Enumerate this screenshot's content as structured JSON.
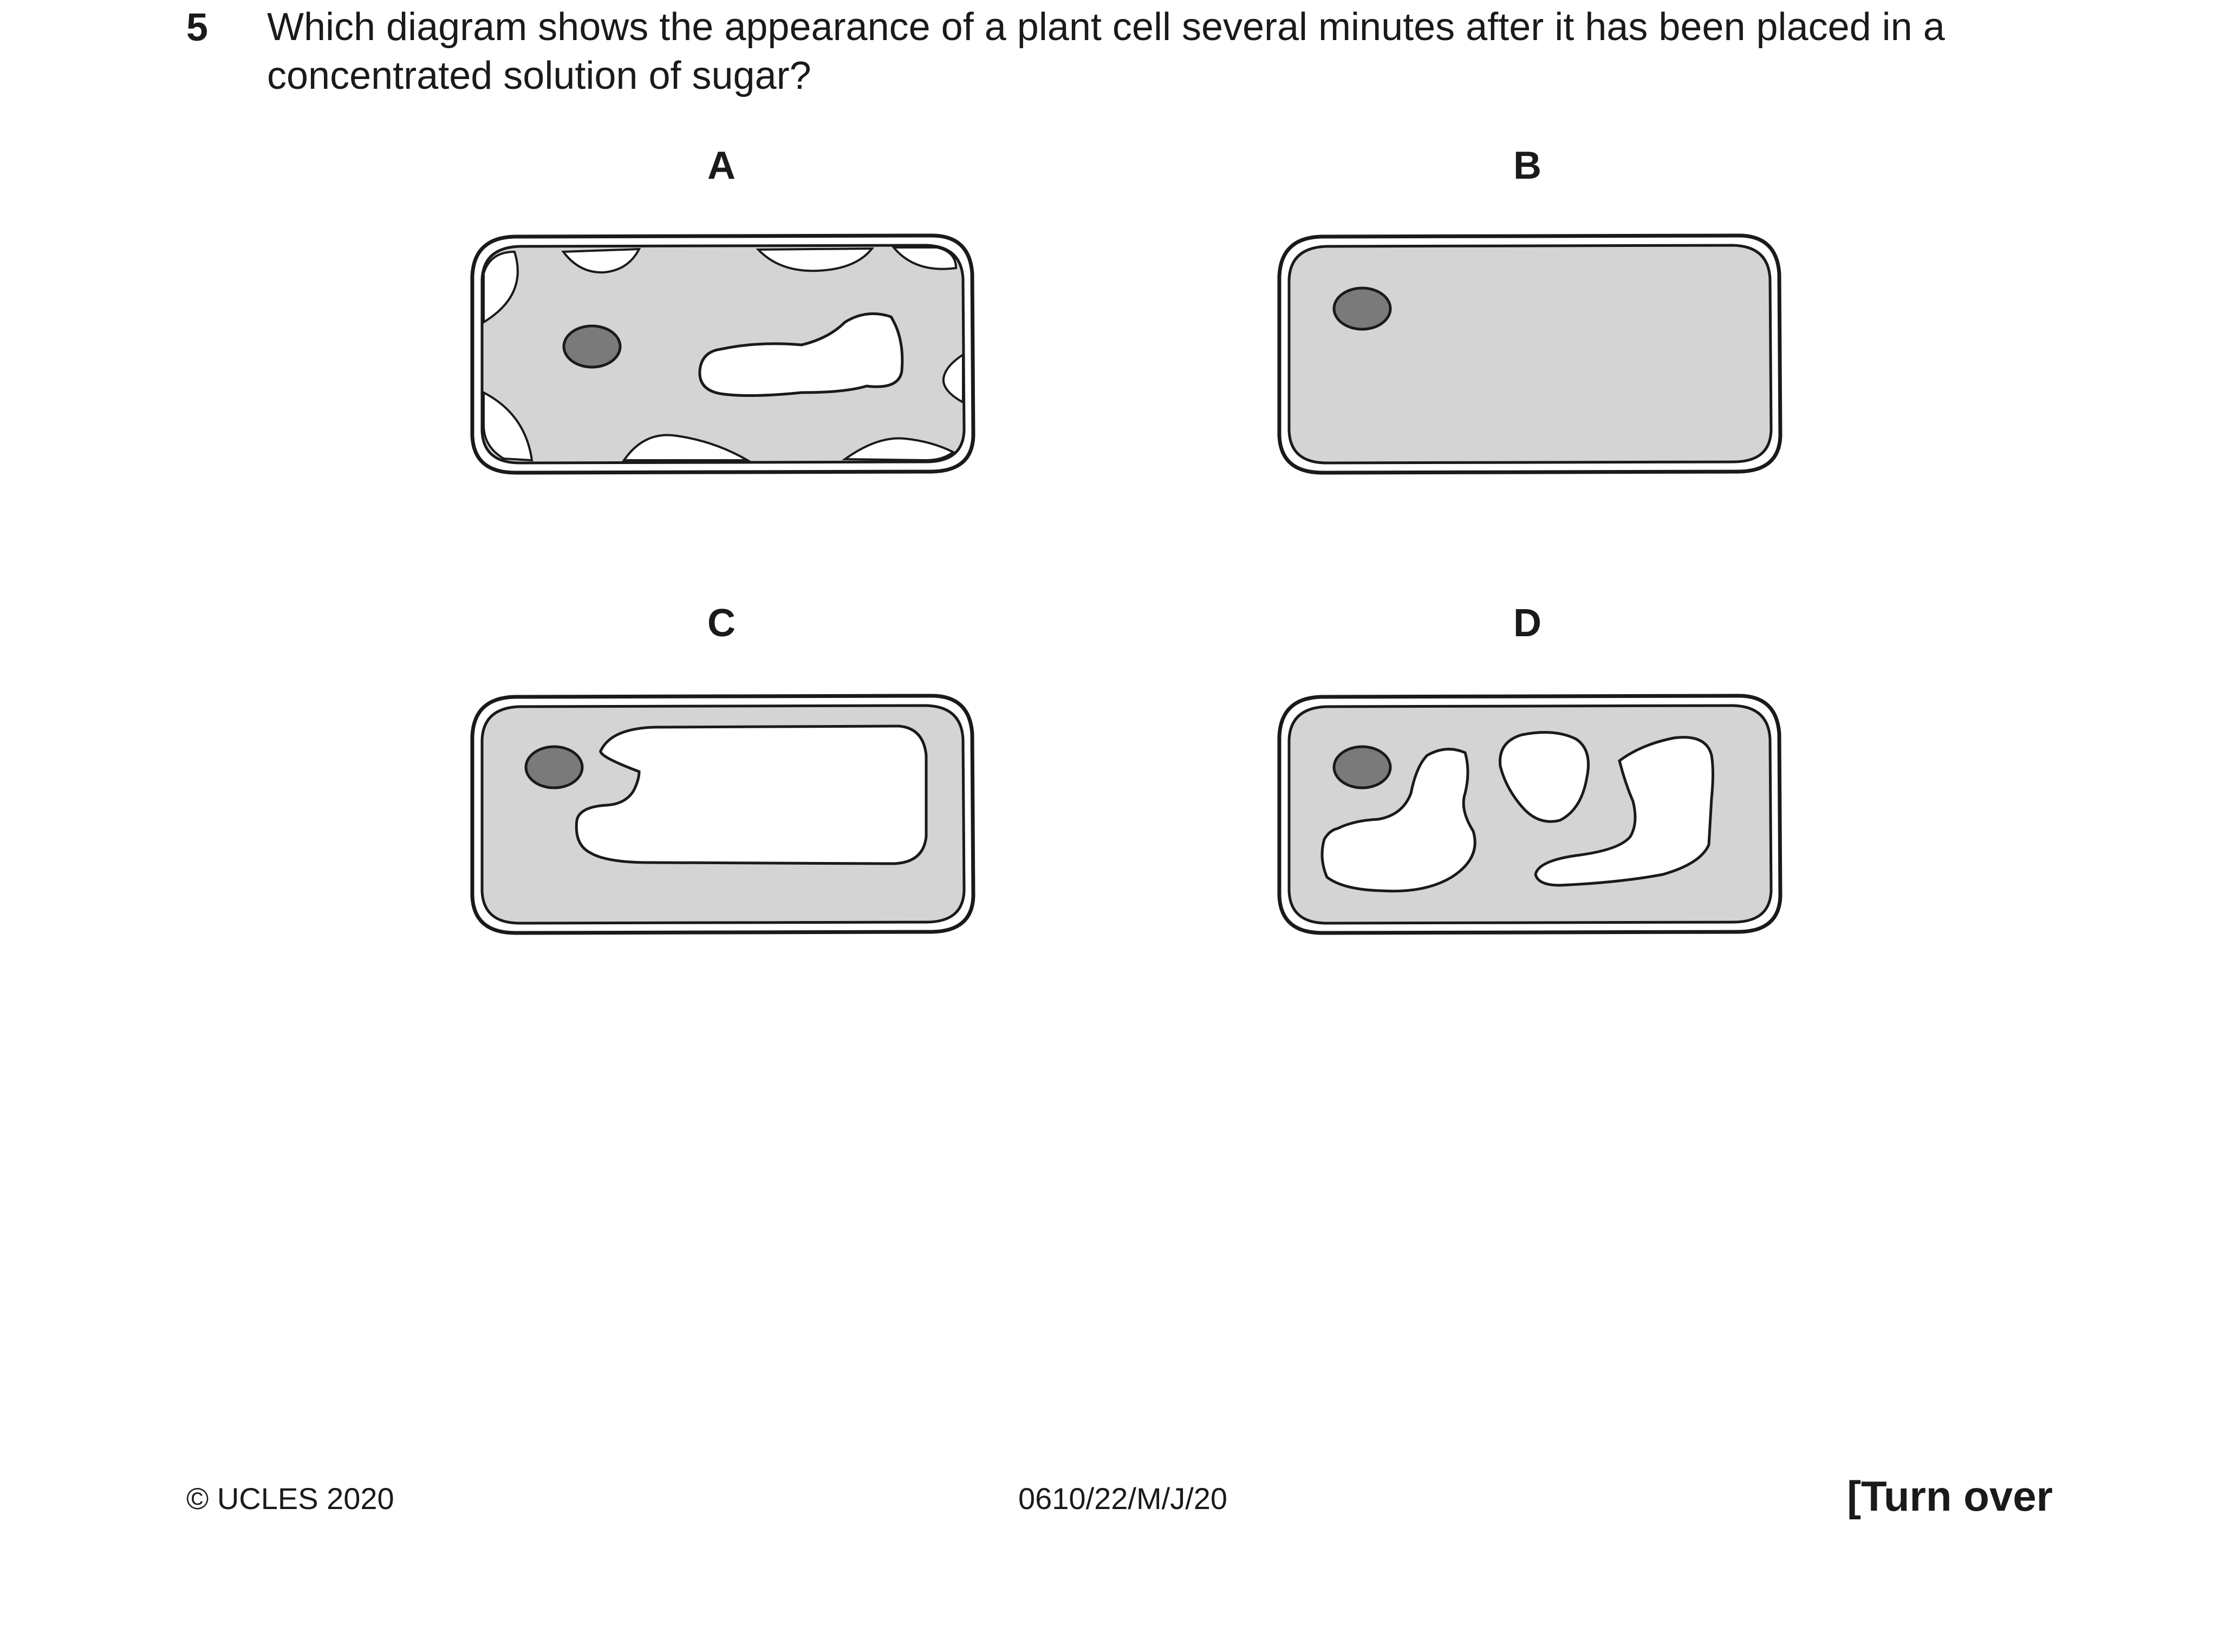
{
  "question": {
    "number": "5",
    "text": "Which diagram shows the appearance of a plant cell several minutes after it has been placed in a concentrated solution of sugar?"
  },
  "options": [
    {
      "label": "A"
    },
    {
      "label": "B"
    },
    {
      "label": "C"
    },
    {
      "label": "D"
    }
  ],
  "colors": {
    "cytoplasm": "#d4d4d4",
    "nucleus": "#7a7a7a",
    "outline": "#1a1a1a",
    "vacuole": "#ffffff"
  },
  "footer": {
    "copyright": "© UCLES 2020",
    "code": "0610/22/M/J/20",
    "turn_over": "[Turn over"
  }
}
